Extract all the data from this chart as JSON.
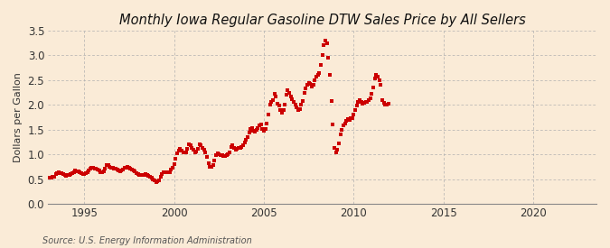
{
  "title": "Monthly Iowa Regular Gasoline DTW Sales Price by All Sellers",
  "ylabel": "Dollars per Gallon",
  "source": "Source: U.S. Energy Information Administration",
  "background_color": "#faebd7",
  "marker_color": "#cc0000",
  "xlim": [
    1993.0,
    2023.5
  ],
  "ylim": [
    0.0,
    3.5
  ],
  "yticks": [
    0.0,
    0.5,
    1.0,
    1.5,
    2.0,
    2.5,
    3.0,
    3.5
  ],
  "xticks": [
    1995,
    2000,
    2005,
    2010,
    2015,
    2020
  ],
  "data": [
    [
      1993.0,
      0.53
    ],
    [
      1993.08,
      0.54
    ],
    [
      1993.17,
      0.54
    ],
    [
      1993.25,
      0.55
    ],
    [
      1993.33,
      0.56
    ],
    [
      1993.42,
      0.6
    ],
    [
      1993.5,
      0.62
    ],
    [
      1993.58,
      0.64
    ],
    [
      1993.67,
      0.63
    ],
    [
      1993.75,
      0.62
    ],
    [
      1993.83,
      0.61
    ],
    [
      1993.92,
      0.59
    ],
    [
      1994.0,
      0.57
    ],
    [
      1994.08,
      0.58
    ],
    [
      1994.17,
      0.58
    ],
    [
      1994.25,
      0.61
    ],
    [
      1994.33,
      0.63
    ],
    [
      1994.42,
      0.65
    ],
    [
      1994.5,
      0.68
    ],
    [
      1994.58,
      0.67
    ],
    [
      1994.67,
      0.66
    ],
    [
      1994.75,
      0.65
    ],
    [
      1994.83,
      0.63
    ],
    [
      1994.92,
      0.6
    ],
    [
      1995.0,
      0.6
    ],
    [
      1995.08,
      0.62
    ],
    [
      1995.17,
      0.64
    ],
    [
      1995.25,
      0.68
    ],
    [
      1995.33,
      0.72
    ],
    [
      1995.42,
      0.74
    ],
    [
      1995.5,
      0.73
    ],
    [
      1995.58,
      0.72
    ],
    [
      1995.67,
      0.71
    ],
    [
      1995.75,
      0.7
    ],
    [
      1995.83,
      0.68
    ],
    [
      1995.92,
      0.65
    ],
    [
      1996.0,
      0.64
    ],
    [
      1996.08,
      0.67
    ],
    [
      1996.17,
      0.72
    ],
    [
      1996.25,
      0.78
    ],
    [
      1996.33,
      0.78
    ],
    [
      1996.42,
      0.76
    ],
    [
      1996.5,
      0.74
    ],
    [
      1996.58,
      0.73
    ],
    [
      1996.67,
      0.72
    ],
    [
      1996.75,
      0.71
    ],
    [
      1996.83,
      0.7
    ],
    [
      1996.92,
      0.68
    ],
    [
      1997.0,
      0.66
    ],
    [
      1997.08,
      0.68
    ],
    [
      1997.17,
      0.7
    ],
    [
      1997.25,
      0.73
    ],
    [
      1997.33,
      0.74
    ],
    [
      1997.42,
      0.75
    ],
    [
      1997.5,
      0.73
    ],
    [
      1997.58,
      0.71
    ],
    [
      1997.67,
      0.7
    ],
    [
      1997.75,
      0.68
    ],
    [
      1997.83,
      0.66
    ],
    [
      1997.92,
      0.63
    ],
    [
      1998.0,
      0.6
    ],
    [
      1998.08,
      0.59
    ],
    [
      1998.17,
      0.58
    ],
    [
      1998.25,
      0.58
    ],
    [
      1998.33,
      0.58
    ],
    [
      1998.42,
      0.6
    ],
    [
      1998.5,
      0.59
    ],
    [
      1998.58,
      0.57
    ],
    [
      1998.67,
      0.55
    ],
    [
      1998.75,
      0.53
    ],
    [
      1998.83,
      0.5
    ],
    [
      1998.92,
      0.47
    ],
    [
      1999.0,
      0.45
    ],
    [
      1999.08,
      0.46
    ],
    [
      1999.17,
      0.48
    ],
    [
      1999.25,
      0.55
    ],
    [
      1999.33,
      0.6
    ],
    [
      1999.42,
      0.64
    ],
    [
      1999.5,
      0.65
    ],
    [
      1999.58,
      0.64
    ],
    [
      1999.67,
      0.64
    ],
    [
      1999.75,
      0.64
    ],
    [
      1999.83,
      0.7
    ],
    [
      1999.92,
      0.74
    ],
    [
      2000.0,
      0.8
    ],
    [
      2000.08,
      0.92
    ],
    [
      2000.17,
      1.02
    ],
    [
      2000.25,
      1.08
    ],
    [
      2000.33,
      1.12
    ],
    [
      2000.42,
      1.08
    ],
    [
      2000.5,
      1.05
    ],
    [
      2000.58,
      1.04
    ],
    [
      2000.67,
      1.05
    ],
    [
      2000.75,
      1.12
    ],
    [
      2000.83,
      1.2
    ],
    [
      2000.92,
      1.18
    ],
    [
      2001.0,
      1.14
    ],
    [
      2001.08,
      1.1
    ],
    [
      2001.17,
      1.05
    ],
    [
      2001.25,
      1.06
    ],
    [
      2001.33,
      1.12
    ],
    [
      2001.42,
      1.2
    ],
    [
      2001.5,
      1.18
    ],
    [
      2001.58,
      1.14
    ],
    [
      2001.67,
      1.1
    ],
    [
      2001.75,
      1.05
    ],
    [
      2001.83,
      0.95
    ],
    [
      2001.92,
      0.82
    ],
    [
      2002.0,
      0.75
    ],
    [
      2002.08,
      0.75
    ],
    [
      2002.17,
      0.78
    ],
    [
      2002.25,
      0.88
    ],
    [
      2002.33,
      0.98
    ],
    [
      2002.42,
      1.02
    ],
    [
      2002.5,
      1.0
    ],
    [
      2002.58,
      0.99
    ],
    [
      2002.67,
      0.98
    ],
    [
      2002.75,
      0.97
    ],
    [
      2002.83,
      0.97
    ],
    [
      2002.92,
      0.98
    ],
    [
      2003.0,
      1.0
    ],
    [
      2003.08,
      1.05
    ],
    [
      2003.17,
      1.16
    ],
    [
      2003.25,
      1.18
    ],
    [
      2003.33,
      1.14
    ],
    [
      2003.42,
      1.1
    ],
    [
      2003.5,
      1.12
    ],
    [
      2003.58,
      1.14
    ],
    [
      2003.67,
      1.14
    ],
    [
      2003.75,
      1.15
    ],
    [
      2003.83,
      1.18
    ],
    [
      2003.92,
      1.24
    ],
    [
      2004.0,
      1.3
    ],
    [
      2004.08,
      1.36
    ],
    [
      2004.17,
      1.44
    ],
    [
      2004.25,
      1.52
    ],
    [
      2004.33,
      1.54
    ],
    [
      2004.42,
      1.48
    ],
    [
      2004.5,
      1.46
    ],
    [
      2004.58,
      1.5
    ],
    [
      2004.67,
      1.54
    ],
    [
      2004.75,
      1.58
    ],
    [
      2004.83,
      1.6
    ],
    [
      2004.92,
      1.52
    ],
    [
      2005.0,
      1.48
    ],
    [
      2005.08,
      1.52
    ],
    [
      2005.17,
      1.62
    ],
    [
      2005.25,
      1.8
    ],
    [
      2005.33,
      2.0
    ],
    [
      2005.42,
      2.06
    ],
    [
      2005.5,
      2.1
    ],
    [
      2005.58,
      2.22
    ],
    [
      2005.67,
      2.18
    ],
    [
      2005.75,
      2.02
    ],
    [
      2005.83,
      1.98
    ],
    [
      2005.92,
      1.9
    ],
    [
      2006.0,
      1.85
    ],
    [
      2006.08,
      1.9
    ],
    [
      2006.17,
      2.0
    ],
    [
      2006.25,
      2.2
    ],
    [
      2006.33,
      2.3
    ],
    [
      2006.42,
      2.24
    ],
    [
      2006.5,
      2.18
    ],
    [
      2006.58,
      2.12
    ],
    [
      2006.67,
      2.06
    ],
    [
      2006.75,
      2.0
    ],
    [
      2006.83,
      1.95
    ],
    [
      2006.92,
      1.9
    ],
    [
      2007.0,
      1.92
    ],
    [
      2007.08,
      2.0
    ],
    [
      2007.17,
      2.08
    ],
    [
      2007.25,
      2.24
    ],
    [
      2007.33,
      2.34
    ],
    [
      2007.42,
      2.4
    ],
    [
      2007.5,
      2.44
    ],
    [
      2007.58,
      2.42
    ],
    [
      2007.67,
      2.38
    ],
    [
      2007.75,
      2.4
    ],
    [
      2007.83,
      2.5
    ],
    [
      2007.92,
      2.58
    ],
    [
      2008.0,
      2.6
    ],
    [
      2008.08,
      2.65
    ],
    [
      2008.17,
      2.8
    ],
    [
      2008.25,
      3.0
    ],
    [
      2008.33,
      3.2
    ],
    [
      2008.42,
      3.3
    ],
    [
      2008.5,
      3.24
    ],
    [
      2008.58,
      2.96
    ],
    [
      2008.67,
      2.6
    ],
    [
      2008.75,
      2.08
    ],
    [
      2008.83,
      1.6
    ],
    [
      2008.92,
      1.14
    ],
    [
      2009.0,
      1.05
    ],
    [
      2009.08,
      1.1
    ],
    [
      2009.17,
      1.22
    ],
    [
      2009.25,
      1.4
    ],
    [
      2009.33,
      1.5
    ],
    [
      2009.42,
      1.58
    ],
    [
      2009.5,
      1.62
    ],
    [
      2009.58,
      1.68
    ],
    [
      2009.67,
      1.72
    ],
    [
      2009.75,
      1.7
    ],
    [
      2009.83,
      1.74
    ],
    [
      2009.92,
      1.74
    ],
    [
      2010.0,
      1.8
    ],
    [
      2010.08,
      1.9
    ],
    [
      2010.17,
      1.98
    ],
    [
      2010.25,
      2.06
    ],
    [
      2010.33,
      2.1
    ],
    [
      2010.42,
      2.06
    ],
    [
      2010.5,
      2.02
    ],
    [
      2010.58,
      2.04
    ],
    [
      2010.67,
      2.06
    ],
    [
      2010.75,
      2.06
    ],
    [
      2010.83,
      2.1
    ],
    [
      2010.92,
      2.14
    ],
    [
      2011.0,
      2.22
    ],
    [
      2011.08,
      2.36
    ],
    [
      2011.17,
      2.54
    ],
    [
      2011.25,
      2.6
    ],
    [
      2011.33,
      2.58
    ],
    [
      2011.42,
      2.5
    ],
    [
      2011.5,
      2.4
    ],
    [
      2011.58,
      2.1
    ],
    [
      2011.67,
      2.05
    ],
    [
      2011.75,
      2.0
    ],
    [
      2011.83,
      2.0
    ],
    [
      2011.92,
      2.02
    ]
  ]
}
